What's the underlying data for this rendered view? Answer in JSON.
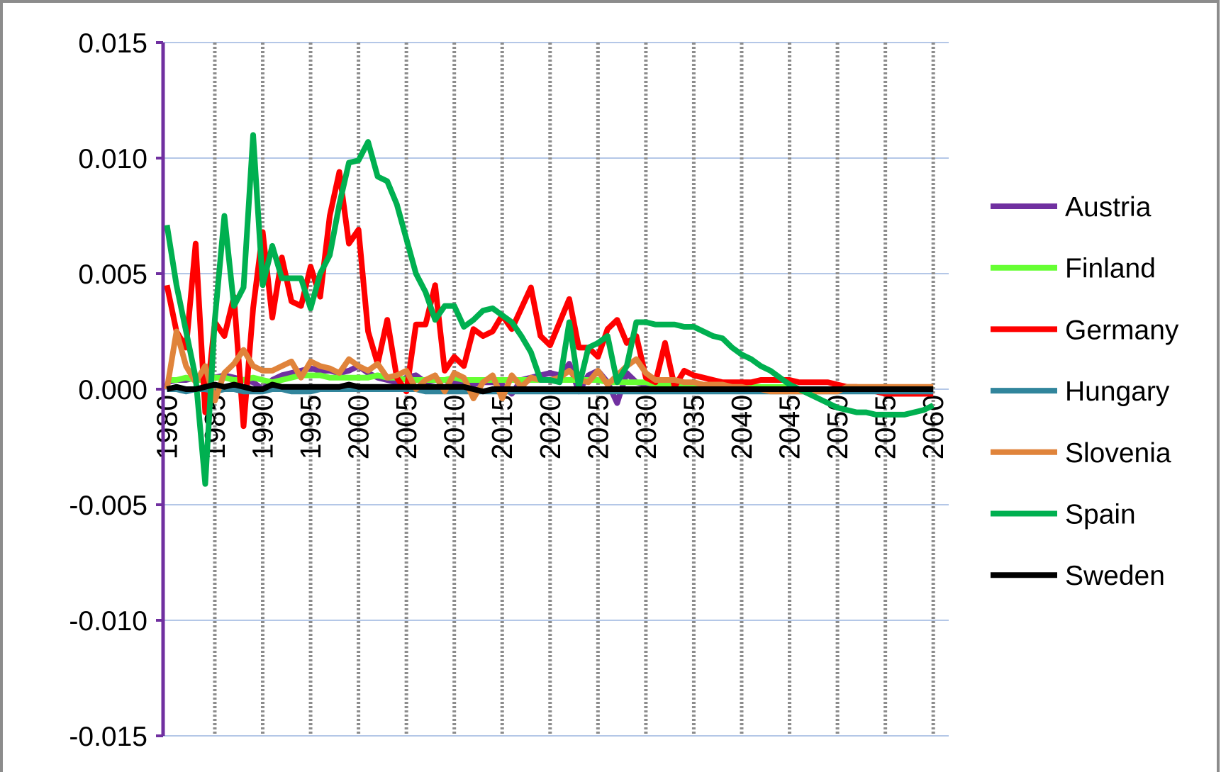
{
  "chart_data": {
    "type": "line",
    "x": [
      1980,
      1981,
      1982,
      1983,
      1984,
      1985,
      1986,
      1987,
      1988,
      1989,
      1990,
      1991,
      1992,
      1993,
      1994,
      1995,
      1996,
      1997,
      1998,
      1999,
      2000,
      2001,
      2002,
      2003,
      2004,
      2005,
      2006,
      2007,
      2008,
      2009,
      2010,
      2011,
      2012,
      2013,
      2014,
      2015,
      2016,
      2017,
      2018,
      2019,
      2020,
      2021,
      2022,
      2023,
      2024,
      2025,
      2026,
      2027,
      2028,
      2029,
      2030,
      2031,
      2032,
      2033,
      2034,
      2035,
      2036,
      2037,
      2038,
      2039,
      2040,
      2041,
      2042,
      2043,
      2044,
      2045,
      2046,
      2047,
      2048,
      2049,
      2050,
      2051,
      2052,
      2053,
      2054,
      2055,
      2056,
      2057,
      2058,
      2059,
      2060
    ],
    "xlim": [
      1979.6,
      2060.8
    ],
    "xticks": [
      1980,
      1985,
      1990,
      1995,
      2000,
      2005,
      2010,
      2015,
      2020,
      2025,
      2030,
      2035,
      2040,
      2045,
      2050,
      2055,
      2060
    ],
    "ylim": [
      -0.015,
      0.015
    ],
    "yticks": [
      -0.015,
      {
        "value": -0.01,
        "label": "-0.010"
      },
      -0.005,
      {
        "value": 0,
        "label": "0.000"
      },
      0.005,
      {
        "value": 0.01,
        "label": "0.010"
      },
      0.015
    ],
    "grid": true,
    "legend": "right",
    "series": [
      {
        "name": "Austria",
        "color": "#7030a0",
        "values": [
          0.0003,
          0.0004,
          0.0004,
          0.0005,
          0.0004,
          0.0005,
          0.0006,
          0.0005,
          0.0004,
          0.0003,
          0.0,
          0.0004,
          0.0006,
          0.0007,
          0.0008,
          0.0009,
          0.0008,
          0.0008,
          0.0007,
          0.0008,
          0.001,
          0.0007,
          0.0005,
          0.0004,
          0.0003,
          0.0005,
          0.0006,
          0.0003,
          0.0004,
          0.0004,
          0.0003,
          0.0003,
          0.0002,
          0.0003,
          0.0003,
          0.0002,
          -0.0002,
          0.0004,
          0.0005,
          0.0006,
          0.0007,
          0.0006,
          0.0011,
          -0.0001,
          0.0006,
          0.0008,
          0.0003,
          -0.0006,
          0.0007,
          0.0003,
          0.0002,
          0.0002,
          0.0001,
          0.0001,
          0.0001,
          0.0001,
          0.0001,
          0.0001,
          0.0001,
          0.0001,
          0,
          0,
          0,
          0,
          0,
          0,
          0,
          0,
          0,
          0,
          0,
          0,
          0,
          0,
          0,
          0,
          0,
          0,
          0,
          0,
          0
        ]
      },
      {
        "name": "Finland",
        "color": "#66ff33",
        "values": [
          0.0004,
          0.0004,
          0.0005,
          0.0004,
          0.0004,
          0.0005,
          0.0005,
          0.0004,
          0.0004,
          0.0005,
          0.0004,
          0.0003,
          0.0004,
          0.0005,
          0.0006,
          0.0006,
          0.0006,
          0.0005,
          0.0005,
          0.0005,
          0.0005,
          0.0005,
          0.0006,
          0.0005,
          0.0005,
          0.0004,
          0.0004,
          0.0004,
          0.0004,
          0.0004,
          0.0005,
          0.0004,
          0.0004,
          0.0004,
          0.0004,
          0.0004,
          0.0004,
          0.0004,
          0.0004,
          0.0004,
          0.0004,
          0.0004,
          0.0004,
          0.0004,
          0.0004,
          0.0004,
          0.0003,
          0.0003,
          0.0003,
          0.0003,
          0.0003,
          0.0002,
          0.0002,
          0.0002,
          0.0002,
          0.0002,
          0.0001,
          0.0001,
          0.0001,
          0.0001,
          0.0001,
          0.0001,
          0.0001,
          0.0001,
          0.0001,
          0.0001,
          0,
          0,
          0,
          0,
          0,
          0,
          0,
          0,
          0,
          0,
          0,
          0,
          0,
          0,
          0
        ]
      },
      {
        "name": "Germany",
        "color": "#ff0000",
        "values": [
          0.0045,
          0.0025,
          0.0018,
          0.0063,
          -0.001,
          0.0029,
          0.0023,
          0.004,
          -0.0016,
          0.0035,
          0.0068,
          0.0031,
          0.0057,
          0.0038,
          0.0036,
          0.0053,
          0.004,
          0.0075,
          0.0094,
          0.0063,
          0.0069,
          0.0025,
          0.0011,
          0.003,
          0.0005,
          -0.0001,
          0.0028,
          0.0028,
          0.0045,
          0.0008,
          0.0014,
          0.001,
          0.0026,
          0.0023,
          0.0025,
          0.0032,
          0.0026,
          0.0035,
          0.0044,
          0.0023,
          0.0019,
          0.0029,
          0.0039,
          0.0018,
          0.0018,
          0.0014,
          0.0026,
          0.003,
          0.002,
          0.0023,
          0.0005,
          0.0003,
          0.002,
          0.0001,
          0.0008,
          0.0006,
          0.0005,
          0.0004,
          0.0003,
          0.0003,
          0.0003,
          0.0003,
          0.0004,
          0.0004,
          0.0004,
          0.0004,
          0.0003,
          0.0003,
          0.0003,
          0.0003,
          0.0002,
          0.0001,
          0.0001,
          0.0,
          -0.0001,
          -0.0002,
          -0.0002,
          -0.0002,
          -0.0002,
          -0.0002,
          -0.0002
        ]
      },
      {
        "name": "Hungary",
        "color": "#31859c",
        "values": [
          0.0,
          0.0,
          -0.0001,
          0.0,
          0.0,
          -0.0001,
          0.0,
          0.0,
          -0.0001,
          -0.0001,
          -0.0001,
          0.0,
          0.0,
          -0.0001,
          -0.0001,
          -0.0001,
          0.0,
          0.0,
          0.0,
          0.0,
          0.0,
          0.0,
          0.0,
          0.0,
          0.0,
          0.0,
          0.0,
          -0.0001,
          -0.0001,
          -0.0001,
          -0.0001,
          -0.0001,
          -0.0001,
          -0.0001,
          -0.0001,
          -0.0001,
          -0.0001,
          -0.0001,
          -0.0001,
          -0.0001,
          -0.0001,
          -0.0001,
          -0.0001,
          -0.0001,
          -0.0001,
          -0.0001,
          -0.0001,
          -0.0001,
          -0.0001,
          -0.0001,
          -0.0001,
          -0.0001,
          -0.0001,
          -0.0001,
          -0.0001,
          -0.0001,
          -0.0001,
          -0.0001,
          -0.0001,
          -0.0001,
          -0.0001,
          -0.0001,
          -0.0001,
          -0.0001,
          -0.0001,
          -0.0001,
          -0.0001,
          -0.0001,
          -0.0001,
          -0.0001,
          -0.0001,
          -0.0001,
          -0.0001,
          -0.0001,
          -0.0001,
          -0.0001,
          -0.0001,
          -0.0001,
          -0.0001,
          -0.0001,
          -0.0001
        ]
      },
      {
        "name": "Slovenia",
        "color": "#e0843b",
        "values": [
          0.0,
          0.0025,
          0.001,
          0.0003,
          0.001,
          -0.0005,
          0.0007,
          0.0011,
          0.0017,
          0.001,
          0.0008,
          0.0008,
          0.001,
          0.0012,
          0.0005,
          0.0012,
          0.001,
          0.0009,
          0.0007,
          0.0013,
          0.001,
          0.0008,
          0.0011,
          0.0005,
          0.0006,
          0.0008,
          0.0,
          0.0004,
          0.0006,
          -0.0001,
          0.0007,
          0.0005,
          -0.0004,
          0.0003,
          0.0006,
          -0.0004,
          0.0006,
          0.0001,
          0.0005,
          0.0004,
          0.0004,
          0.0005,
          0.0008,
          0.0004,
          0.0003,
          0.0008,
          0.0002,
          0.0006,
          0.001,
          0.0013,
          0.0007,
          0.0004,
          0.0004,
          0.0004,
          0.0003,
          0.0003,
          0.0002,
          0.0002,
          0.0002,
          0.0001,
          0.0001,
          0.0,
          0.0,
          -0.0001,
          -0.0001,
          -0.0001,
          -0.0001,
          -0.0001,
          -0.0001,
          -0.0001,
          -0.0001,
          0.0001,
          0.0001,
          0.0001,
          0.0001,
          0.0001,
          0.0001,
          0.0001,
          0.0001,
          0.0001,
          0.0001
        ]
      },
      {
        "name": "Spain",
        "color": "#00b050",
        "values": [
          0.0071,
          0.0045,
          0.0025,
          0.0005,
          -0.0041,
          0.003,
          0.0075,
          0.0036,
          0.0044,
          0.011,
          0.0045,
          0.0062,
          0.0048,
          0.0048,
          0.0048,
          0.0035,
          0.005,
          0.0058,
          0.008,
          0.0098,
          0.0099,
          0.0107,
          0.0092,
          0.009,
          0.008,
          0.0065,
          0.005,
          0.0042,
          0.003,
          0.0036,
          0.0036,
          0.0027,
          0.003,
          0.0034,
          0.0035,
          0.0032,
          0.0029,
          0.0023,
          0.0016,
          0.0004,
          0.0004,
          0.0003,
          0.0029,
          0.0001,
          0.0018,
          0.002,
          0.0023,
          0.0003,
          0.001,
          0.0029,
          0.0029,
          0.0028,
          0.0028,
          0.0028,
          0.0027,
          0.0027,
          0.0025,
          0.0023,
          0.0022,
          0.0018,
          0.0015,
          0.0013,
          0.001,
          0.0008,
          0.0005,
          0.0002,
          0.0,
          -0.0002,
          -0.0004,
          -0.0006,
          -0.0008,
          -0.0009,
          -0.001,
          -0.001,
          -0.0011,
          -0.0011,
          -0.0011,
          -0.0011,
          -0.001,
          -0.0009,
          -0.0007
        ]
      },
      {
        "name": "Sweden",
        "color": "#000000",
        "values": [
          0.0,
          0.0001,
          0.0,
          0.0,
          0.0001,
          0.0002,
          0.0001,
          0.0002,
          0.0001,
          0.0,
          0.0,
          0.0002,
          0.0001,
          0.0001,
          0.0001,
          0.0001,
          0.0001,
          0.0001,
          0.0001,
          0.0002,
          0.0001,
          0.0001,
          0.0001,
          0.0001,
          0.0001,
          0.0001,
          0.0001,
          0.0001,
          0.0001,
          0.0001,
          0.0001,
          0.0001,
          0.0,
          -0.0001,
          0.0,
          0.0,
          0.0,
          0.0,
          0.0,
          0.0,
          0.0,
          0.0,
          0.0,
          0.0,
          0.0,
          0.0,
          0.0,
          0.0,
          0.0,
          0.0,
          0.0,
          0.0,
          0.0,
          0.0,
          0.0,
          0.0,
          0.0,
          0.0,
          0.0,
          0.0,
          0.0,
          0.0,
          0.0,
          0.0,
          0.0,
          0.0,
          0.0,
          0.0,
          0.0,
          0.0,
          0.0,
          0.0,
          0.0,
          0.0,
          0.0,
          0.0,
          0.0,
          0.0,
          0.0,
          0.0,
          0.0
        ]
      }
    ]
  }
}
